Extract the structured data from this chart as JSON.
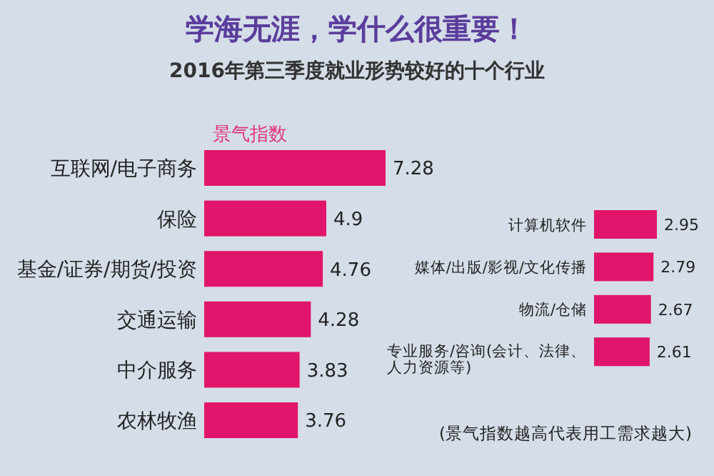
{
  "chart_data": [
    {
      "type": "bar",
      "orientation": "horizontal",
      "title": "学海无涯，学什么很重要！",
      "subtitle": "2016年第三季度就业形势较好的十个行业",
      "xlabel": "景气指数",
      "categories": [
        "互联网/电子商务",
        "保险",
        "基金/证券/期货/投资",
        "交通运输",
        "中介服务",
        "农林牧渔"
      ],
      "series": [
        {
          "color": "#e0156b",
          "values": [
            7.28,
            4.9,
            4.76,
            4.28,
            3.83,
            3.76
          ]
        }
      ],
      "data_labels": true
    },
    {
      "type": "bar",
      "orientation": "horizontal",
      "categories": [
        "计算机软件",
        "媒体/出版/影视/文化传播",
        "物流/仓储",
        "专业服务/咨询(会计、法律、人力资源等)"
      ],
      "series": [
        {
          "color": "#e0156b",
          "values": [
            2.95,
            2.79,
            2.67,
            2.61
          ]
        }
      ],
      "data_labels": true,
      "annotations": [
        "(景气指数越高代表用工需求越大)"
      ]
    }
  ]
}
